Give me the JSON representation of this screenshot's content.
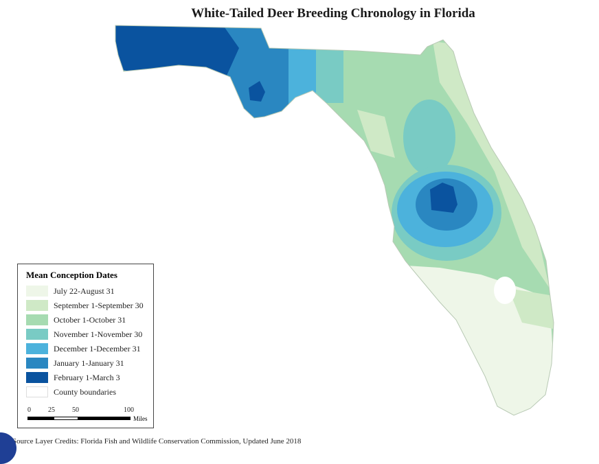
{
  "title": "White-Tailed Deer Breeding Chronology in Florida",
  "legend": {
    "title": "Mean Conception Dates",
    "items": [
      {
        "label": "July 22-August 31",
        "color": "#eef6e8"
      },
      {
        "label": "September 1-September 30",
        "color": "#cfe9c6"
      },
      {
        "label": "October 1-October 31",
        "color": "#a6dbb1"
      },
      {
        "label": "November 1-November 30",
        "color": "#79cbc4"
      },
      {
        "label": "December 1-December 31",
        "color": "#4cb2dc"
      },
      {
        "label": "January 1-January 31",
        "color": "#2a87c1"
      },
      {
        "label": "February 1-March 3",
        "color": "#0a539f"
      },
      {
        "label": "County boundaries",
        "color": "#ffffff"
      }
    ]
  },
  "scale": {
    "ticks": [
      "0",
      "25",
      "50",
      "100"
    ],
    "units": "Miles"
  },
  "credits": "Source Layer Credits: Florida Fish and Wildlife Conservation Commission, Updated June 2018"
}
